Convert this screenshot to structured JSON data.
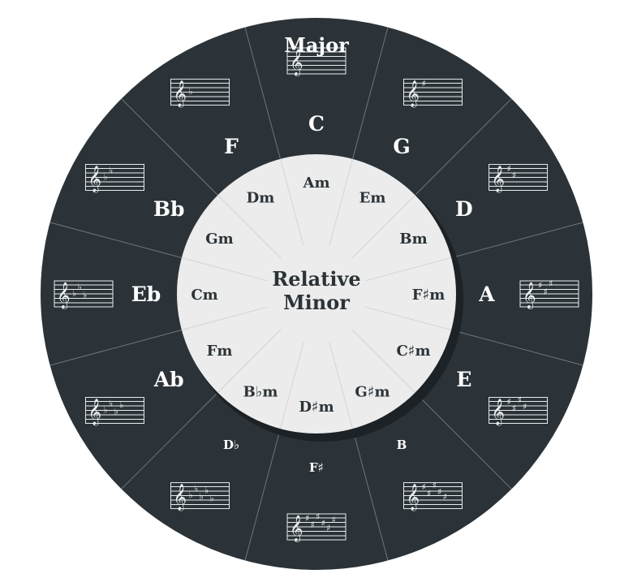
{
  "colors": {
    "outer_ring": "#2b3338",
    "inner_circle": "#ececec",
    "spoke": "#6d767a",
    "staff": "#e9ecee",
    "major_text": "#ffffff",
    "minor_text": "#2b3338"
  },
  "outer_title": "Major",
  "center_label": [
    "Relative",
    "Minor"
  ],
  "keys": [
    {
      "major": "C",
      "minor": "Am",
      "accidental": "none",
      "count": 0
    },
    {
      "major": "G",
      "minor": "Em",
      "accidental": "sharp",
      "count": 1
    },
    {
      "major": "D",
      "minor": "Bm",
      "accidental": "sharp",
      "count": 2
    },
    {
      "major": "A",
      "minor": "F♯m",
      "accidental": "sharp",
      "count": 3
    },
    {
      "major": "E",
      "minor": "C♯m",
      "accidental": "sharp",
      "count": 4
    },
    {
      "major": "B",
      "minor": "G♯m",
      "accidental": "sharp",
      "count": 5
    },
    {
      "major": "F♯",
      "minor": "D♯m",
      "accidental": "sharp",
      "count": 6
    },
    {
      "major": "D♭",
      "minor": "B♭m",
      "accidental": "flat",
      "count": 5
    },
    {
      "major": "Ab",
      "minor": "Fm",
      "accidental": "flat",
      "count": 4
    },
    {
      "major": "Eb",
      "minor": "Cm",
      "accidental": "flat",
      "count": 3
    },
    {
      "major": "Bb",
      "minor": "Gm",
      "accidental": "flat",
      "count": 2
    },
    {
      "major": "F",
      "minor": "Dm",
      "accidental": "flat",
      "count": 1
    }
  ],
  "icons": {
    "staff": "treble-clef-staff-icon"
  }
}
